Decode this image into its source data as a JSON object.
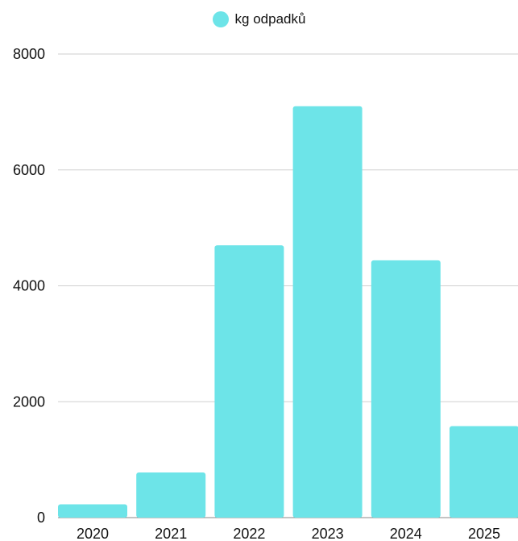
{
  "chart_data": {
    "type": "bar",
    "categories": [
      "2020",
      "2021",
      "2022",
      "2023",
      "2024",
      "2025"
    ],
    "series": [
      {
        "name": "kg odpadků",
        "values": [
          230,
          780,
          4700,
          7100,
          4440,
          1580
        ],
        "color": "#6de4e8"
      }
    ],
    "ylim": [
      0,
      8000
    ],
    "yticks": [
      "0",
      "2000",
      "4000",
      "6000",
      "8000"
    ],
    "grid": true,
    "legend_position": "top-center"
  }
}
